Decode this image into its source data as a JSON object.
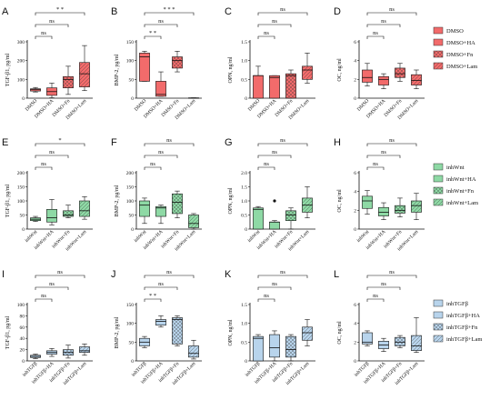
{
  "legends": [
    {
      "items": [
        {
          "label": "DMSO",
          "pattern": "solid"
        },
        {
          "label": "DMSO+HA",
          "pattern": "solid"
        },
        {
          "label": "DMSO+Fn",
          "pattern": "cross"
        },
        {
          "label": "DMSO+Lam",
          "pattern": "diag"
        }
      ],
      "color": "#f26b6b"
    },
    {
      "items": [
        {
          "label": "inhWnt",
          "pattern": "solid"
        },
        {
          "label": "inhWnt+HA",
          "pattern": "solid"
        },
        {
          "label": "inhWnt+Fn",
          "pattern": "cross"
        },
        {
          "label": "inhWnt+Lam",
          "pattern": "diag"
        }
      ],
      "color": "#8ed9a5"
    },
    {
      "items": [
        {
          "label": "inhTGFβ",
          "pattern": "solid"
        },
        {
          "label": "inhTGFβ+HA",
          "pattern": "solid"
        },
        {
          "label": "inhTGFβ+Fn",
          "pattern": "cross"
        },
        {
          "label": "inhTGFβ+Lam",
          "pattern": "diag"
        }
      ],
      "color": "#b8d4ec"
    }
  ],
  "chart_data": [
    {
      "type": "box",
      "panel": "A",
      "ylabel": "TGF-β1, pg/ml",
      "ylim": [
        0,
        300
      ],
      "ticks": [
        0,
        100,
        200,
        300
      ],
      "color": "#f26b6b",
      "categories": [
        "DMSO",
        "DMSO+HA",
        "DMSO+Fn",
        "DMSO+Lam"
      ],
      "boxes": [
        [
          33,
          38,
          45,
          50,
          57
        ],
        [
          2,
          15,
          35,
          55,
          80
        ],
        [
          20,
          55,
          100,
          115,
          170
        ],
        [
          40,
          60,
          130,
          190,
          280
        ]
      ],
      "brackets": [
        {
          "from": 0,
          "to": 3,
          "label": "* *"
        },
        {
          "from": 0,
          "to": 2,
          "label": "ns"
        },
        {
          "from": 0,
          "to": 1,
          "label": "ns"
        }
      ]
    },
    {
      "type": "box",
      "panel": "B",
      "ylabel": "BMP-2, pg/ml",
      "ylim": [
        0,
        150
      ],
      "ticks": [
        0,
        50,
        100,
        150
      ],
      "color": "#f26b6b",
      "categories": [
        "DMSO",
        "DMSO+HA",
        "DMSO+Fn",
        "DMSO+Lam"
      ],
      "boxes": [
        [
          45,
          45,
          110,
          120,
          125
        ],
        [
          5,
          5,
          10,
          45,
          70
        ],
        [
          70,
          80,
          100,
          110,
          125
        ],
        [
          0,
          0,
          0,
          1,
          1
        ]
      ],
      "brackets": [
        {
          "from": 0,
          "to": 3,
          "label": "* * *"
        },
        {
          "from": 0,
          "to": 2,
          "label": "ns"
        },
        {
          "from": 0,
          "to": 1,
          "label": "* *"
        }
      ]
    },
    {
      "type": "box",
      "panel": "C",
      "ylabel": "OPN, ng/ml",
      "ylim": [
        0,
        1.5
      ],
      "ticks": [
        0,
        0.5,
        1.0,
        1.5
      ],
      "color": "#f26b6b",
      "categories": [
        "DMSO",
        "DMSO+HA",
        "DMSO+Fn",
        "DMSO+Lam"
      ],
      "boxes": [
        [
          0,
          0,
          0.6,
          0.6,
          0.85
        ],
        [
          0,
          0,
          0.55,
          0.6,
          0.6
        ],
        [
          0,
          0,
          0.6,
          0.65,
          0.75
        ],
        [
          0.4,
          0.5,
          0.75,
          0.85,
          1.2
        ]
      ],
      "brackets": [
        {
          "from": 0,
          "to": 3,
          "label": "ns"
        },
        {
          "from": 0,
          "to": 2,
          "label": "ns"
        },
        {
          "from": 0,
          "to": 1,
          "label": "ns"
        }
      ]
    },
    {
      "type": "box",
      "panel": "D",
      "ylabel": "OC, ng/ml",
      "ylim": [
        0,
        6
      ],
      "ticks": [
        0,
        2,
        4,
        6
      ],
      "color": "#f26b6b",
      "categories": [
        "DMSO",
        "DMSO+HA",
        "DMSO+Fn",
        "DMSO+Lam"
      ],
      "boxes": [
        [
          1.3,
          1.7,
          2.2,
          3.0,
          3.7
        ],
        [
          1.0,
          1.4,
          2.0,
          2.3,
          2.6
        ],
        [
          1.8,
          2.2,
          2.6,
          3.2,
          3.7
        ],
        [
          1.0,
          1.4,
          1.9,
          2.5,
          3.0
        ]
      ],
      "brackets": [
        {
          "from": 0,
          "to": 3,
          "label": "ns"
        },
        {
          "from": 0,
          "to": 2,
          "label": "ns"
        },
        {
          "from": 0,
          "to": 1,
          "label": "ns"
        }
      ]
    },
    {
      "type": "box",
      "panel": "E",
      "ylabel": "TGF-β1, pg/ml",
      "ylim": [
        0,
        200
      ],
      "ticks": [
        0,
        50,
        100,
        150,
        200
      ],
      "color": "#8ed9a5",
      "categories": [
        "inhWnt",
        "inhWnt+HA",
        "inhWnt+Fn",
        "inhWnt+Lam"
      ],
      "boxes": [
        [
          27,
          30,
          35,
          40,
          45
        ],
        [
          15,
          25,
          40,
          70,
          105
        ],
        [
          40,
          45,
          50,
          65,
          85
        ],
        [
          35,
          45,
          65,
          100,
          115
        ]
      ],
      "brackets": [
        {
          "from": 0,
          "to": 3,
          "label": "*"
        },
        {
          "from": 0,
          "to": 2,
          "label": "ns"
        },
        {
          "from": 0,
          "to": 1,
          "label": "ns"
        }
      ]
    },
    {
      "type": "box",
      "panel": "F",
      "ylabel": "BMP-2, pg/ml",
      "ylim": [
        0,
        200
      ],
      "ticks": [
        0,
        50,
        100,
        150,
        200
      ],
      "color": "#8ed9a5",
      "categories": [
        "inhWnt",
        "inhWnt+HA",
        "inhWnt+Fn",
        "inhWnt+Lam"
      ],
      "boxes": [
        [
          20,
          45,
          85,
          100,
          110
        ],
        [
          20,
          45,
          75,
          80,
          85
        ],
        [
          40,
          55,
          95,
          125,
          135
        ],
        [
          0,
          5,
          20,
          50,
          55
        ]
      ],
      "brackets": [
        {
          "from": 0,
          "to": 3,
          "label": "ns"
        },
        {
          "from": 0,
          "to": 2,
          "label": "ns"
        },
        {
          "from": 0,
          "to": 1,
          "label": "ns"
        }
      ]
    },
    {
      "type": "box",
      "panel": "G",
      "ylabel": "OPN, ng/ml",
      "ylim": [
        0,
        2.0
      ],
      "ticks": [
        0,
        0.5,
        1.0,
        1.5,
        2.0
      ],
      "color": "#8ed9a5",
      "categories": [
        "inhWnt",
        "inhWnt+HA",
        "inhWnt+Fn",
        "inhWnt+Lam"
      ],
      "boxes": [
        [
          0,
          0,
          0.7,
          0.75,
          0.8
        ],
        [
          0,
          0,
          0.25,
          0.25,
          0.3
        ],
        [
          0,
          0.3,
          0.5,
          0.65,
          0.75
        ],
        [
          0.4,
          0.6,
          0.85,
          1.1,
          1.5
        ]
      ],
      "outliers": [
        {
          "box": 1,
          "value": 1.0
        }
      ],
      "brackets": [
        {
          "from": 0,
          "to": 3,
          "label": "ns"
        },
        {
          "from": 0,
          "to": 2,
          "label": "ns"
        },
        {
          "from": 0,
          "to": 1,
          "label": "ns"
        }
      ]
    },
    {
      "type": "box",
      "panel": "H",
      "ylabel": "OC, ng/ml",
      "ylim": [
        0,
        6
      ],
      "ticks": [
        0,
        2,
        4,
        6
      ],
      "color": "#8ed9a5",
      "categories": [
        "inhWnt",
        "inhWnt+HA",
        "inhWnt+Fn",
        "inhWnt+Lam"
      ],
      "boxes": [
        [
          1.6,
          2.2,
          3.0,
          3.5,
          4.1
        ],
        [
          1.0,
          1.4,
          1.8,
          2.3,
          2.8
        ],
        [
          1.3,
          1.7,
          2.0,
          2.5,
          3.3
        ],
        [
          1.0,
          1.8,
          2.5,
          3.0,
          3.8
        ]
      ],
      "brackets": [
        {
          "from": 0,
          "to": 3,
          "label": "ns"
        },
        {
          "from": 0,
          "to": 2,
          "label": "ns"
        },
        {
          "from": 0,
          "to": 1,
          "label": "ns"
        }
      ]
    },
    {
      "type": "box",
      "panel": "I",
      "ylabel": "TGF-β1, pg/ml",
      "ylim": [
        0,
        100
      ],
      "ticks": [
        0,
        20,
        40,
        60,
        80,
        100
      ],
      "color": "#b8d4ec",
      "categories": [
        "inhTGFβ",
        "inhTGFβ+HA",
        "inhTGFβ+Fn",
        "inhTGFβ+Lam"
      ],
      "boxes": [
        [
          4,
          6,
          8,
          10,
          12
        ],
        [
          8,
          12,
          15,
          18,
          22
        ],
        [
          5,
          10,
          15,
          20,
          28
        ],
        [
          10,
          15,
          18,
          25,
          30
        ]
      ],
      "brackets": [
        {
          "from": 0,
          "to": 3,
          "label": "ns"
        },
        {
          "from": 0,
          "to": 2,
          "label": "ns"
        },
        {
          "from": 0,
          "to": 1,
          "label": "ns"
        }
      ]
    },
    {
      "type": "box",
      "panel": "J",
      "ylabel": "BMP-2, pg/ml",
      "ylim": [
        0,
        150
      ],
      "ticks": [
        0,
        50,
        100,
        150
      ],
      "color": "#b8d4ec",
      "categories": [
        "inhTGFβ",
        "inhTGFβ+HA",
        "inhTGFβ+Fn",
        "inhTGFβ+Lam"
      ],
      "boxes": [
        [
          35,
          40,
          50,
          60,
          65
        ],
        [
          90,
          95,
          105,
          110,
          120
        ],
        [
          40,
          45,
          110,
          115,
          120
        ],
        [
          5,
          10,
          20,
          40,
          55
        ]
      ],
      "brackets": [
        {
          "from": 0,
          "to": 3,
          "label": "ns"
        },
        {
          "from": 0,
          "to": 2,
          "label": "ns"
        },
        {
          "from": 0,
          "to": 1,
          "label": "* *"
        }
      ]
    },
    {
      "type": "box",
      "panel": "K",
      "ylabel": "OPN, ng/ml",
      "ylim": [
        0,
        1.5
      ],
      "ticks": [
        0,
        0.5,
        1.0,
        1.5
      ],
      "color": "#b8d4ec",
      "categories": [
        "inhTGFβ",
        "inhTGFβ+HA",
        "inhTGFβ+Fn",
        "inhTGFβ+Lam"
      ],
      "boxes": [
        [
          0,
          0,
          0.6,
          0.65,
          0.7
        ],
        [
          0,
          0.1,
          0.35,
          0.7,
          0.8
        ],
        [
          0,
          0.1,
          0.3,
          0.65,
          0.7
        ],
        [
          0.4,
          0.55,
          0.75,
          0.9,
          1.1
        ]
      ],
      "brackets": [
        {
          "from": 0,
          "to": 3,
          "label": "ns"
        },
        {
          "from": 0,
          "to": 2,
          "label": "ns"
        },
        {
          "from": 0,
          "to": 1,
          "label": "ns"
        }
      ]
    },
    {
      "type": "box",
      "panel": "L",
      "ylabel": "OC, ng/ml",
      "ylim": [
        0,
        6
      ],
      "ticks": [
        0,
        2,
        4,
        6
      ],
      "color": "#b8d4ec",
      "categories": [
        "inhTGFβ",
        "inhTGFβ+HA",
        "inhTGFβ+Fn",
        "inhTGFβ+Lam"
      ],
      "boxes": [
        [
          1.6,
          1.8,
          2.0,
          3.0,
          3.2
        ],
        [
          1.0,
          1.3,
          1.7,
          2.1,
          2.4
        ],
        [
          1.4,
          1.6,
          2.0,
          2.5,
          2.7
        ],
        [
          0.9,
          1.1,
          1.6,
          2.7,
          4.6
        ]
      ],
      "brackets": [
        {
          "from": 0,
          "to": 3,
          "label": "ns"
        },
        {
          "from": 0,
          "to": 2,
          "label": "ns"
        },
        {
          "from": 0,
          "to": 1,
          "label": "ns"
        }
      ]
    }
  ]
}
